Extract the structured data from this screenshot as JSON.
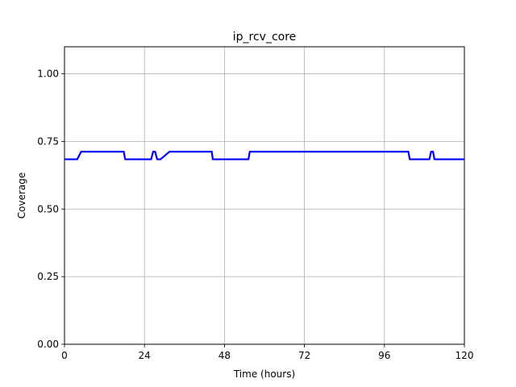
{
  "chart_data": {
    "type": "line",
    "title": "ip_rcv_core",
    "xlabel": "Time (hours)",
    "ylabel": "Coverage",
    "xlim": [
      0,
      120
    ],
    "ylim": [
      0,
      1.1
    ],
    "xticks": [
      0,
      24,
      48,
      72,
      96,
      120
    ],
    "xtick_labels": [
      "0",
      "24",
      "48",
      "72",
      "96",
      "120"
    ],
    "yticks": [
      0,
      0.25,
      0.5,
      0.75,
      1.0
    ],
    "ytick_labels": [
      "0.00",
      "0.25",
      "0.50",
      "0.75",
      "1.00"
    ],
    "grid": true,
    "line_color": "#0000ff",
    "series": [
      {
        "x": [
          0,
          3.8,
          5,
          17.8,
          18.2,
          26,
          26.6,
          27.2,
          27.8,
          28.8,
          31.5,
          44.2,
          44.5,
          55.2,
          55.6,
          103.2,
          103.6,
          109.5,
          110,
          110.6,
          111,
          120
        ],
        "y": [
          0.684,
          0.684,
          0.712,
          0.712,
          0.684,
          0.684,
          0.712,
          0.712,
          0.684,
          0.684,
          0.712,
          0.712,
          0.684,
          0.684,
          0.712,
          0.712,
          0.684,
          0.684,
          0.712,
          0.712,
          0.684,
          0.684
        ]
      }
    ]
  }
}
